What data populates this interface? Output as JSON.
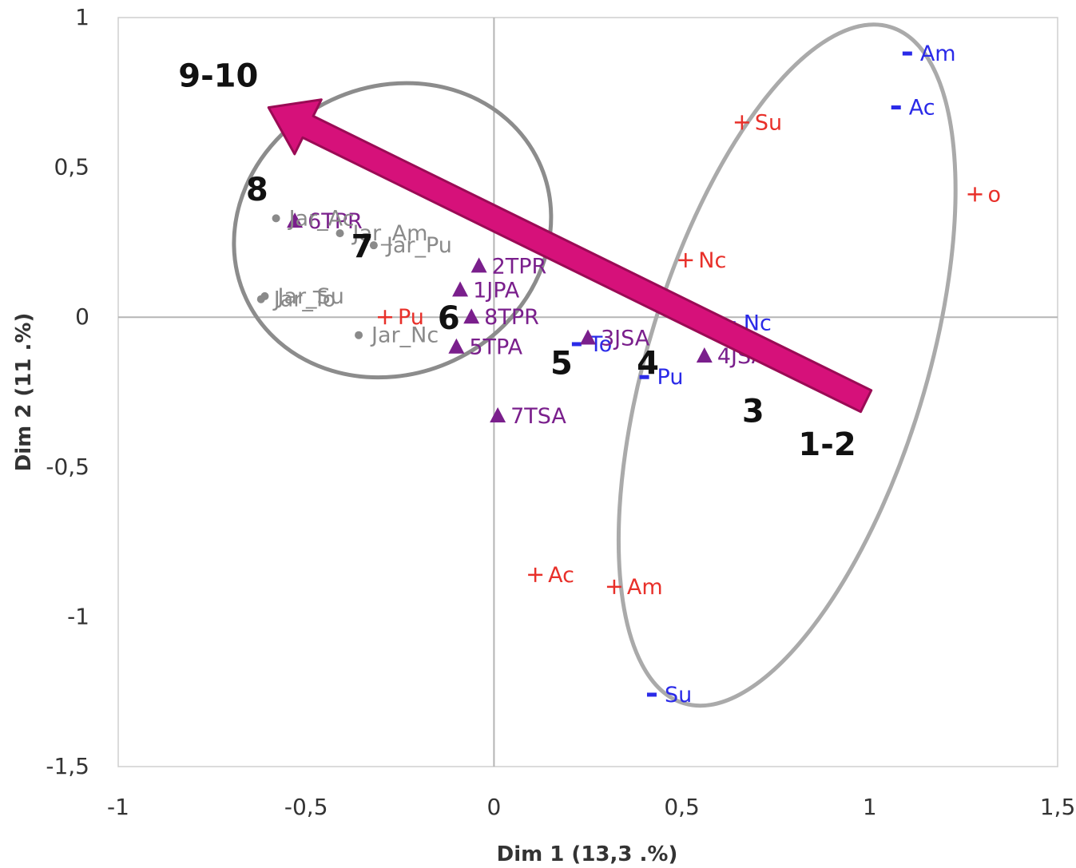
{
  "chart_data": {
    "type": "scatter",
    "title": "",
    "xlabel": "Dim 1 (13,3 .%)",
    "ylabel": "Dim 2 (11 .%)",
    "xlim": [
      -1,
      1.5
    ],
    "ylim": [
      -1.5,
      1
    ],
    "x_ticks": [
      {
        "v": -1,
        "label": "-1"
      },
      {
        "v": -0.5,
        "label": "-0,5"
      },
      {
        "v": 0,
        "label": "0"
      },
      {
        "v": 0.5,
        "label": "0,5"
      },
      {
        "v": 1,
        "label": "1"
      },
      {
        "v": 1.5,
        "label": "1,5"
      }
    ],
    "y_ticks": [
      {
        "v": 1,
        "label": "1"
      },
      {
        "v": 0.5,
        "label": "0,5"
      },
      {
        "v": 0,
        "label": "0"
      },
      {
        "v": -0.5,
        "label": "-0,5"
      },
      {
        "v": -1,
        "label": "-1"
      },
      {
        "v": -1.5,
        "label": "-1,5"
      }
    ],
    "grid": false,
    "colors": {
      "red": "#e8302a",
      "blue": "#2a2ae8",
      "purple": "#7a1f8c",
      "grey": "#8a8a8a",
      "arrow": "#d6117a",
      "ellipse": "#aaaaaa"
    },
    "series": [
      {
        "marker": "plus",
        "color": "#e8302a",
        "points": [
          {
            "x": 0.66,
            "y": 0.65,
            "label": "Su"
          },
          {
            "x": 1.28,
            "y": 0.41,
            "label": "o"
          },
          {
            "x": 0.51,
            "y": 0.19,
            "label": "Nc"
          },
          {
            "x": -0.29,
            "y": 0.0,
            "label": "Pu"
          },
          {
            "x": 0.11,
            "y": -0.86,
            "label": "Ac"
          },
          {
            "x": 0.32,
            "y": -0.9,
            "label": "Am"
          }
        ]
      },
      {
        "marker": "dash",
        "color": "#2a2ae8",
        "points": [
          {
            "x": 1.1,
            "y": 0.88,
            "label": "Am"
          },
          {
            "x": 1.07,
            "y": 0.7,
            "label": "Ac"
          },
          {
            "x": 0.63,
            "y": -0.02,
            "label": "Nc"
          },
          {
            "x": 0.22,
            "y": -0.09,
            "label": "To"
          },
          {
            "x": 0.4,
            "y": -0.2,
            "label": "Pu"
          },
          {
            "x": 0.42,
            "y": -1.26,
            "label": "Su"
          }
        ]
      },
      {
        "marker": "triangle",
        "color": "#7a1f8c",
        "points": [
          {
            "x": -0.53,
            "y": 0.32,
            "label": "6TPR"
          },
          {
            "x": -0.04,
            "y": 0.17,
            "label": "2TPR"
          },
          {
            "x": -0.09,
            "y": 0.09,
            "label": "1JPA"
          },
          {
            "x": -0.06,
            "y": 0.0,
            "label": "8TPR"
          },
          {
            "x": -0.1,
            "y": -0.1,
            "label": "5TPA"
          },
          {
            "x": 0.25,
            "y": -0.07,
            "label": "3JSA"
          },
          {
            "x": 0.56,
            "y": -0.13,
            "label": "4JSA"
          },
          {
            "x": 0.01,
            "y": -0.33,
            "label": "7TSA"
          }
        ]
      },
      {
        "marker": "dot",
        "color": "#8a8a8a",
        "points": [
          {
            "x": -0.58,
            "y": 0.33,
            "label": "Jar_Ac"
          },
          {
            "x": -0.41,
            "y": 0.28,
            "label": "Jar_Am"
          },
          {
            "x": -0.32,
            "y": 0.24,
            "label": "Jar_Pu"
          },
          {
            "x": -0.61,
            "y": 0.07,
            "label": "Jar_Su"
          },
          {
            "x": -0.62,
            "y": 0.06,
            "label": "Jar_To"
          },
          {
            "x": -0.36,
            "y": -0.06,
            "label": "Jar_Nc"
          }
        ]
      }
    ],
    "annotations": [
      {
        "text": "9-10",
        "x": -0.84,
        "y": 0.77
      },
      {
        "text": "8",
        "x": -0.66,
        "y": 0.39
      },
      {
        "text": "7",
        "x": -0.38,
        "y": 0.2
      },
      {
        "text": "6",
        "x": -0.15,
        "y": -0.04
      },
      {
        "text": "5",
        "x": 0.15,
        "y": -0.19
      },
      {
        "text": "4",
        "x": 0.38,
        "y": -0.19
      },
      {
        "text": "3",
        "x": 0.66,
        "y": -0.35
      },
      {
        "text": "1-2",
        "x": 0.81,
        "y": -0.46
      }
    ],
    "ellipses": [
      {
        "cx": -0.27,
        "cy": 0.29,
        "rx": 0.43,
        "ry": 0.48,
        "rotation_deg": -25
      },
      {
        "cx": 0.78,
        "cy": -0.16,
        "rx": 0.37,
        "ry": 1.18,
        "rotation_deg": 17
      }
    ],
    "arrow": {
      "from": [
        0.99,
        -0.28
      ],
      "to": [
        -0.6,
        0.7
      ]
    }
  }
}
